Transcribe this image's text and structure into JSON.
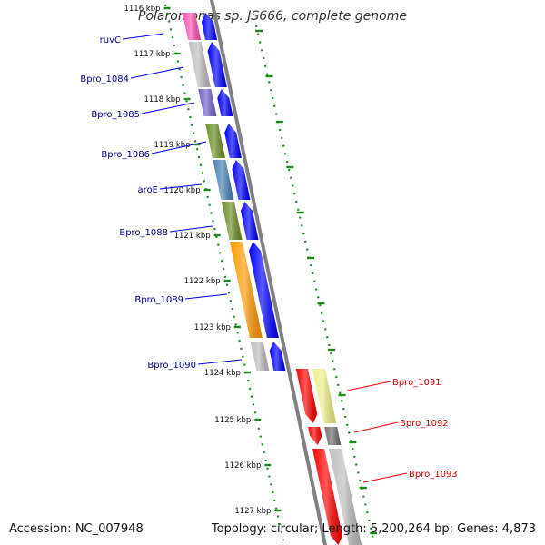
{
  "title": "Polaromonas sp. JS666, complete genome",
  "accession": "Accession: NC_007948",
  "topology": "Topology: circular; Length: 5,200,264 bp; Genes: 4,873",
  "colors": {
    "backbone": "#808080",
    "tick": "#1a8a1a",
    "forward_arrow": "#0000ff",
    "reverse_arrow": "#ff0000",
    "label_left": "#00008b",
    "label_right": "#cc0000"
  },
  "ticks": [
    {
      "label": "1116 kbp"
    },
    {
      "label": "1117 kbp"
    },
    {
      "label": "1118 kbp"
    },
    {
      "label": "1119 kbp"
    },
    {
      "label": "1120 kbp"
    },
    {
      "label": "1121 kbp"
    },
    {
      "label": "1122 kbp"
    },
    {
      "label": "1123 kbp"
    },
    {
      "label": "1124 kbp"
    },
    {
      "label": "1125 kbp"
    },
    {
      "label": "1126 kbp"
    },
    {
      "label": "1127 kbp"
    }
  ],
  "genes_forward": [
    {
      "name": "ruvC",
      "color": "#ff4fb0"
    },
    {
      "name": "Bpro_1084",
      "color": "#bdbdbd"
    },
    {
      "name": "Bpro_1085",
      "color": "#7060c8"
    },
    {
      "name": "Bpro_1086",
      "color": "#6b8e23"
    },
    {
      "name": "aroE",
      "color": "#4682b4"
    },
    {
      "name": "Bpro_1088",
      "color": "#6b8e23"
    },
    {
      "name": "Bpro_1089",
      "color": "#ff9900"
    },
    {
      "name": "Bpro_1090",
      "color": "#bdbdbd"
    }
  ],
  "genes_reverse": [
    {
      "name": "Bpro_1091",
      "color": "#eeee88"
    },
    {
      "name": "Bpro_1092",
      "color": "#707070"
    },
    {
      "name": "Bpro_1093",
      "color": "#bdbdbd"
    }
  ]
}
